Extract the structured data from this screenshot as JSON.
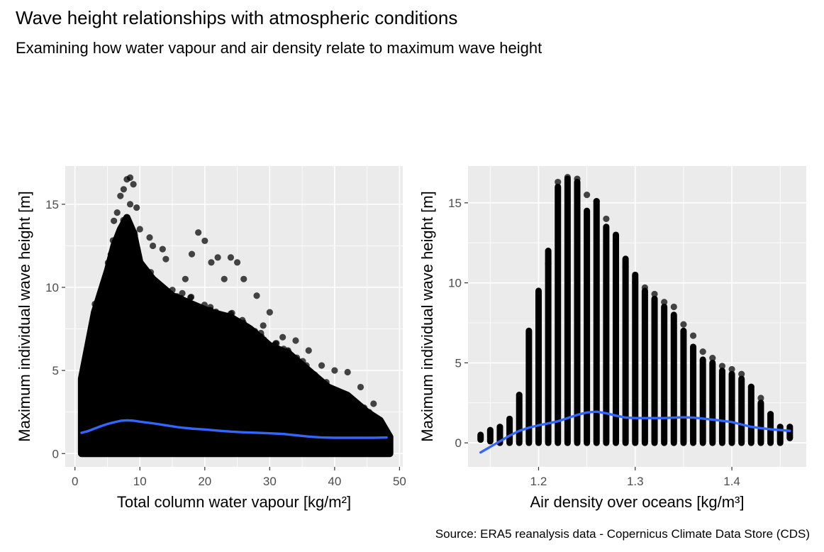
{
  "title": "Wave height relationships with atmospheric conditions",
  "subtitle": "Examining how water vapour and air density relate to maximum wave height",
  "caption": "Source: ERA5 reanalysis data - Copernicus Climate Data Store (CDS)",
  "colors": {
    "panel": "#ebebeb",
    "grid": "#ffffff",
    "points": "#000000",
    "smooth": "#3366ff"
  },
  "chart_data": [
    {
      "type": "scatter",
      "xlabel": "Total column water vapour [kg/m²]",
      "ylabel": "Maximum individual wave height [m]",
      "xlim": [
        -1.5,
        50.5
      ],
      "ylim": [
        -0.8,
        17.3
      ],
      "xticks": [
        0,
        10,
        20,
        30,
        40,
        50
      ],
      "yticks": [
        0,
        5,
        10,
        15
      ],
      "grid": true,
      "envelope": {
        "x": [
          1,
          3,
          5,
          6,
          7,
          8,
          9,
          10,
          12,
          15,
          18,
          21,
          24,
          27,
          30,
          33,
          36,
          39,
          42,
          45,
          47,
          48.5
        ],
        "ymax": [
          4.5,
          8.5,
          11,
          12.5,
          13.5,
          14.2,
          13.3,
          11.5,
          10.5,
          9.5,
          9,
          8.5,
          8.2,
          7.5,
          6.5,
          6,
          5,
          4,
          3.5,
          2.5,
          2,
          1
        ]
      },
      "outliers": [
        [
          7.5,
          15.9
        ],
        [
          8,
          16.5
        ],
        [
          8.5,
          16.6
        ],
        [
          9,
          16.2
        ],
        [
          7,
          15.5
        ],
        [
          6.5,
          14.5
        ],
        [
          6,
          14
        ],
        [
          8.5,
          15
        ],
        [
          9.5,
          14.8
        ],
        [
          10,
          13.5
        ],
        [
          11.5,
          13
        ],
        [
          12,
          12.5
        ],
        [
          13.5,
          12.3
        ],
        [
          14,
          11.7
        ],
        [
          19,
          13.3
        ],
        [
          20,
          12.8
        ],
        [
          18,
          12
        ],
        [
          21,
          11.5
        ],
        [
          22,
          11.8
        ],
        [
          24,
          11.8
        ],
        [
          25,
          11.5
        ],
        [
          23,
          10.5
        ],
        [
          17,
          10.5
        ],
        [
          26,
          10.5
        ],
        [
          28,
          9.5
        ],
        [
          30,
          8.5
        ],
        [
          29,
          7.7
        ],
        [
          32,
          7
        ],
        [
          34,
          6.8
        ],
        [
          36,
          6.2
        ],
        [
          38,
          5.3
        ],
        [
          40,
          5
        ],
        [
          42,
          4.9
        ],
        [
          44,
          4
        ],
        [
          46,
          3
        ],
        [
          48,
          1.2
        ],
        [
          48.5,
          0.8
        ]
      ],
      "smooth": {
        "x": [
          1,
          2,
          3,
          4,
          5,
          6,
          7,
          8,
          9,
          10,
          12,
          14,
          16,
          18,
          20,
          22,
          24,
          26,
          28,
          30,
          32,
          34,
          36,
          38,
          40,
          42,
          44,
          46,
          48
        ],
        "y": [
          1.25,
          1.35,
          1.5,
          1.65,
          1.78,
          1.88,
          1.97,
          2.0,
          1.98,
          1.92,
          1.82,
          1.7,
          1.58,
          1.5,
          1.45,
          1.38,
          1.32,
          1.28,
          1.25,
          1.22,
          1.18,
          1.1,
          1.02,
          0.97,
          0.95,
          0.95,
          0.95,
          0.95,
          0.97
        ]
      }
    },
    {
      "type": "scatter",
      "xlabel": "Air density over oceans [kg/m³]",
      "ylabel": "Maximum individual wave height [m]",
      "xlim": [
        1.127,
        1.477
      ],
      "ylim": [
        -1.5,
        17.3
      ],
      "xticks": [
        1.2,
        1.3,
        1.4
      ],
      "yticks": [
        0,
        5,
        10,
        15
      ],
      "grid": true,
      "columns": {
        "x": [
          1.14,
          1.15,
          1.16,
          1.17,
          1.18,
          1.19,
          1.2,
          1.21,
          1.22,
          1.23,
          1.24,
          1.25,
          1.26,
          1.27,
          1.28,
          1.29,
          1.3,
          1.31,
          1.32,
          1.33,
          1.34,
          1.35,
          1.36,
          1.37,
          1.38,
          1.39,
          1.4,
          1.41,
          1.42,
          1.43,
          1.44,
          1.45,
          1.46
        ],
        "ymin": [
          0.2,
          0.1,
          0,
          0,
          0,
          0,
          0,
          0,
          0,
          0,
          0,
          0,
          0,
          0,
          0,
          0,
          0,
          0,
          0,
          0,
          0,
          0,
          0,
          0,
          0,
          0,
          0,
          0,
          0,
          0,
          0,
          0,
          0.3
        ],
        "ymax": [
          0.5,
          0.8,
          1.0,
          1.5,
          3.0,
          7.0,
          9.5,
          12.0,
          16.0,
          16.5,
          16.3,
          14.5,
          15.1,
          13.5,
          13.0,
          11.5,
          10.5,
          9.5,
          9.0,
          8.5,
          8.0,
          7.0,
          6.0,
          5.2,
          5.0,
          4.5,
          4.3,
          4.0,
          3.5,
          2.5,
          1.8,
          1.0,
          1.0
        ]
      },
      "outliers": [
        [
          1.21,
          11.2
        ],
        [
          1.22,
          16.3
        ],
        [
          1.23,
          16.6
        ],
        [
          1.24,
          16.5
        ],
        [
          1.25,
          15.5
        ],
        [
          1.26,
          15.1
        ],
        [
          1.27,
          14.0
        ],
        [
          1.28,
          12.5
        ],
        [
          1.29,
          11.0
        ],
        [
          1.3,
          10.0
        ],
        [
          1.31,
          9.7
        ],
        [
          1.32,
          9.3
        ],
        [
          1.33,
          8.8
        ],
        [
          1.34,
          8.5
        ],
        [
          1.35,
          7.4
        ],
        [
          1.36,
          6.7
        ],
        [
          1.37,
          5.7
        ],
        [
          1.38,
          5.3
        ],
        [
          1.39,
          4.8
        ],
        [
          1.4,
          4.6
        ],
        [
          1.41,
          4.3
        ],
        [
          1.42,
          3.5
        ],
        [
          1.43,
          2.8
        ]
      ],
      "smooth": {
        "x": [
          1.14,
          1.15,
          1.16,
          1.17,
          1.18,
          1.19,
          1.2,
          1.21,
          1.22,
          1.23,
          1.24,
          1.25,
          1.26,
          1.27,
          1.28,
          1.29,
          1.3,
          1.31,
          1.32,
          1.33,
          1.34,
          1.35,
          1.36,
          1.37,
          1.38,
          1.39,
          1.4,
          1.41,
          1.42,
          1.43,
          1.44,
          1.45,
          1.46
        ],
        "y": [
          -0.6,
          -0.25,
          0.1,
          0.45,
          0.75,
          0.95,
          1.1,
          1.22,
          1.35,
          1.55,
          1.75,
          1.9,
          1.95,
          1.85,
          1.7,
          1.58,
          1.55,
          1.55,
          1.55,
          1.55,
          1.58,
          1.6,
          1.58,
          1.52,
          1.45,
          1.38,
          1.3,
          1.15,
          1.0,
          0.92,
          0.85,
          0.8,
          0.75
        ]
      }
    }
  ]
}
